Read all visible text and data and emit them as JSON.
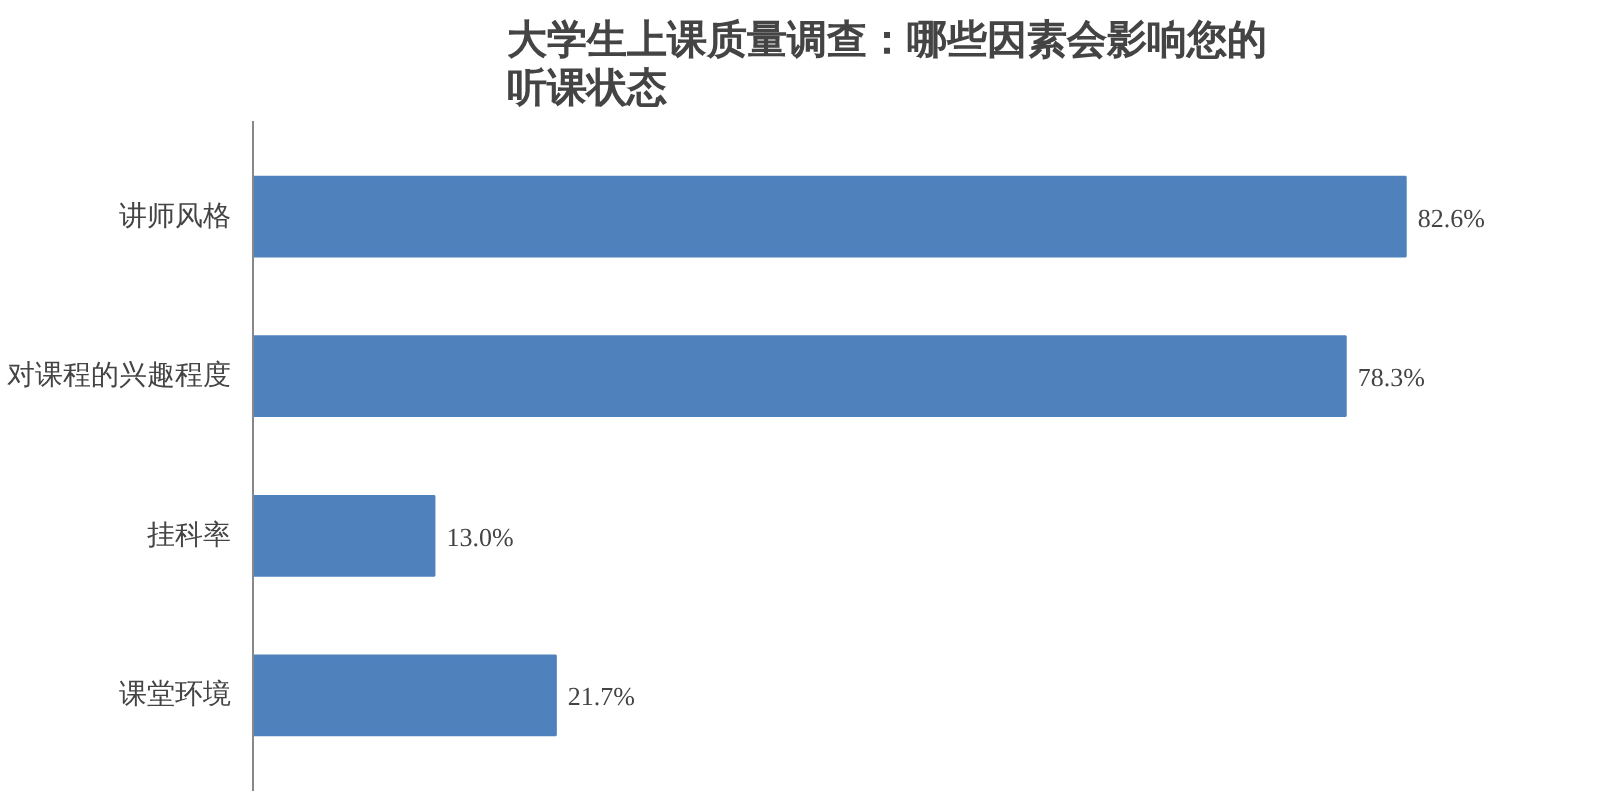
{
  "chart_data": {
    "type": "bar",
    "orientation": "horizontal",
    "title": "大学生上课质量调查：哪些因素会影响您的听课状态",
    "categories": [
      "讲师风格",
      "对课程的兴趣程度",
      "挂科率",
      "课堂环境"
    ],
    "values": [
      82.6,
      78.3,
      13.0,
      21.7
    ],
    "value_labels": [
      "82.6%",
      "78.3%",
      "13.0%",
      "21.7%"
    ],
    "color": "#4f81bd",
    "grid": false
  }
}
